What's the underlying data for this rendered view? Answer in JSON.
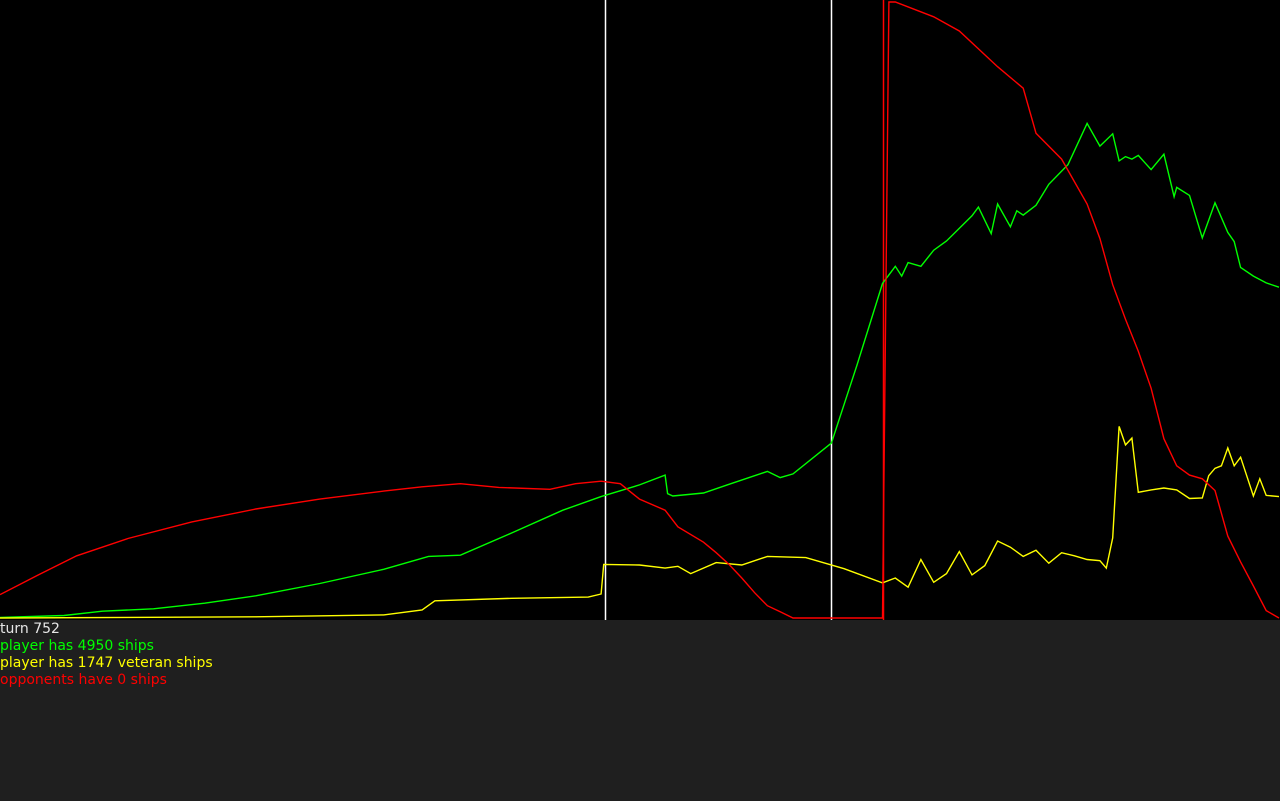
{
  "status": {
    "turn": "turn 752",
    "ships": "player has 4950 ships",
    "veterans": "player has 1747 veteran ships",
    "opponents": "opponents have 0 ships"
  },
  "colors": {
    "player": "#00ff00",
    "veteran": "#ffff00",
    "opponents": "#ff0000",
    "marker": "#ffffff",
    "turn_text": "#e6e6e6",
    "background": "#000000",
    "panel": "#1f1f1f"
  },
  "chart_data": {
    "type": "line",
    "title": "",
    "xlabel": "",
    "ylabel": "",
    "grid": false,
    "legend": "none",
    "markers": [
      {
        "name": "marker-1",
        "x": 0.473,
        "color": "white"
      },
      {
        "name": "marker-2",
        "x": 0.65,
        "color": "white"
      },
      {
        "name": "marker-3",
        "x": 0.69,
        "color": "red"
      }
    ],
    "series": [
      {
        "key": "player",
        "color": "green",
        "x": [
          0,
          0.05,
          0.08,
          0.12,
          0.16,
          0.2,
          0.25,
          0.3,
          0.335,
          0.36,
          0.4,
          0.44,
          0.47,
          0.5,
          0.52,
          0.522,
          0.526,
          0.55,
          0.57,
          0.6,
          0.61,
          0.62,
          0.65,
          0.67,
          0.69,
          0.7,
          0.705,
          0.71,
          0.72,
          0.73,
          0.74,
          0.76,
          0.765,
          0.775,
          0.78,
          0.79,
          0.795,
          0.8,
          0.81,
          0.82,
          0.835,
          0.85,
          0.86,
          0.87,
          0.875,
          0.88,
          0.885,
          0.89,
          0.9,
          0.91,
          0.918,
          0.92,
          0.93,
          0.94,
          0.95,
          0.96,
          0.965,
          0.97,
          0.98,
          0.99,
          1.0
        ],
        "y": [
          0.001,
          0.004,
          0.011,
          0.015,
          0.024,
          0.036,
          0.056,
          0.079,
          0.1,
          0.102,
          0.138,
          0.175,
          0.197,
          0.216,
          0.232,
          0.202,
          0.198,
          0.203,
          0.217,
          0.238,
          0.228,
          0.234,
          0.284,
          0.41,
          0.543,
          0.571,
          0.555,
          0.577,
          0.571,
          0.597,
          0.612,
          0.653,
          0.667,
          0.624,
          0.672,
          0.635,
          0.661,
          0.654,
          0.67,
          0.704,
          0.736,
          0.803,
          0.766,
          0.786,
          0.742,
          0.749,
          0.745,
          0.751,
          0.728,
          0.753,
          0.684,
          0.699,
          0.686,
          0.617,
          0.674,
          0.626,
          0.611,
          0.569,
          0.555,
          0.544,
          0.537
        ]
      },
      {
        "key": "veteran",
        "color": "yellow",
        "x": [
          0,
          0.2,
          0.3,
          0.33,
          0.34,
          0.4,
          0.46,
          0.47,
          0.472,
          0.5,
          0.52,
          0.53,
          0.54,
          0.56,
          0.58,
          0.6,
          0.63,
          0.66,
          0.69,
          0.7,
          0.71,
          0.72,
          0.73,
          0.74,
          0.75,
          0.76,
          0.77,
          0.78,
          0.79,
          0.8,
          0.81,
          0.82,
          0.83,
          0.84,
          0.85,
          0.86,
          0.865,
          0.87,
          0.875,
          0.88,
          0.885,
          0.89,
          0.9,
          0.91,
          0.92,
          0.93,
          0.94,
          0.945,
          0.95,
          0.955,
          0.96,
          0.965,
          0.97,
          0.98,
          0.985,
          0.99,
          1.0
        ],
        "y": [
          0.0,
          0.002,
          0.005,
          0.013,
          0.028,
          0.032,
          0.034,
          0.039,
          0.087,
          0.086,
          0.081,
          0.084,
          0.072,
          0.09,
          0.086,
          0.1,
          0.098,
          0.08,
          0.057,
          0.065,
          0.05,
          0.095,
          0.058,
          0.072,
          0.108,
          0.07,
          0.085,
          0.125,
          0.115,
          0.1,
          0.11,
          0.089,
          0.106,
          0.101,
          0.095,
          0.093,
          0.081,
          0.13,
          0.311,
          0.281,
          0.292,
          0.204,
          0.208,
          0.211,
          0.208,
          0.194,
          0.195,
          0.231,
          0.243,
          0.247,
          0.276,
          0.247,
          0.261,
          0.198,
          0.226,
          0.199,
          0.197
        ]
      },
      {
        "key": "opponents",
        "color": "red",
        "x": [
          0,
          0.03,
          0.06,
          0.1,
          0.15,
          0.2,
          0.25,
          0.3,
          0.33,
          0.36,
          0.39,
          0.43,
          0.45,
          0.47,
          0.485,
          0.5,
          0.52,
          0.53,
          0.55,
          0.56,
          0.57,
          0.58,
          0.59,
          0.6,
          0.61,
          0.62,
          0.63,
          0.65,
          0.66,
          0.69,
          0.695,
          0.7,
          0.73,
          0.75,
          0.78,
          0.8,
          0.81,
          0.83,
          0.85,
          0.86,
          0.87,
          0.88,
          0.89,
          0.9,
          0.91,
          0.92,
          0.93,
          0.94,
          0.95,
          0.96,
          0.97,
          0.98,
          0.99,
          1.0
        ],
        "y": [
          0.038,
          0.07,
          0.101,
          0.129,
          0.156,
          0.177,
          0.193,
          0.206,
          0.213,
          0.218,
          0.212,
          0.209,
          0.218,
          0.222,
          0.218,
          0.193,
          0.175,
          0.148,
          0.123,
          0.106,
          0.087,
          0.065,
          0.041,
          0.02,
          0.01,
          0.0,
          0.0,
          0.0,
          0.0,
          0.0,
          1.0,
          1.0,
          0.976,
          0.953,
          0.895,
          0.86,
          0.787,
          0.745,
          0.672,
          0.616,
          0.541,
          0.485,
          0.433,
          0.373,
          0.291,
          0.247,
          0.232,
          0.226,
          0.207,
          0.133,
          0.091,
          0.052,
          0.012,
          0.0
        ]
      }
    ]
  }
}
